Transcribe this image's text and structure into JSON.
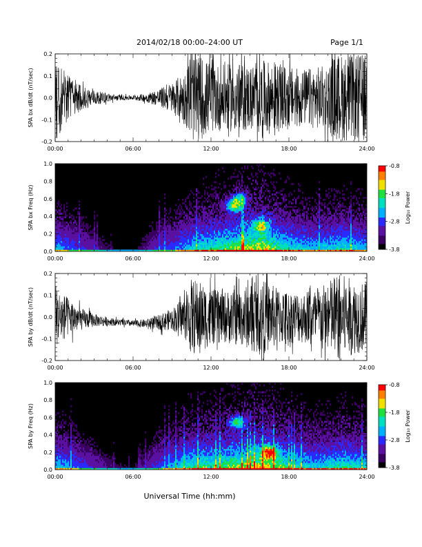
{
  "page": {
    "title": "2014/02/18  00:00–24:00 UT",
    "page_label": "Page 1/1",
    "xlabel": "Universal Time (hh:mm)"
  },
  "colors": {
    "trace": "#000000",
    "spectrogram_background": "#000000",
    "colormap": [
      "#000000",
      "#3a0060",
      "#5a10a0",
      "#2a2aff",
      "#00b0ff",
      "#00e0c0",
      "#20e040",
      "#f0e000",
      "#ff8000",
      "#ff0000"
    ]
  },
  "chart_data": [
    {
      "type": "line",
      "panel": "bx_dbdt",
      "ylabel": "SPA bx dB/dt (nT/sec)",
      "xlim": [
        0,
        24
      ],
      "ylim": [
        -0.2,
        0.2
      ],
      "xticks": [
        "00:00",
        "06:00",
        "12:00",
        "18:00",
        "24:00"
      ],
      "yticks": [
        "-0.2",
        "-0.1",
        "0.0",
        "0.1",
        "0.2"
      ],
      "series": [
        {
          "x": [
            0,
            1,
            2,
            3,
            4,
            5,
            6,
            7,
            8,
            9,
            10,
            10.5,
            11,
            12,
            13,
            14,
            15,
            16,
            17,
            18,
            19,
            20,
            21,
            21.5,
            22,
            23,
            24
          ],
          "amplitude": [
            0.2,
            0.1,
            0.06,
            0.035,
            0.02,
            0.012,
            0.01,
            0.02,
            0.04,
            0.07,
            0.12,
            0.2,
            0.2,
            0.16,
            0.15,
            0.16,
            0.15,
            0.17,
            0.16,
            0.14,
            0.13,
            0.14,
            0.15,
            0.2,
            0.2,
            0.2,
            0.2
          ]
        }
      ]
    },
    {
      "type": "heatmap",
      "panel": "bx_freq",
      "ylabel": "SPA bx Freq (Hz)",
      "colorbar_label": "Log₁₀ Power",
      "xlim": [
        0,
        24
      ],
      "ylim": [
        0.0,
        1.0
      ],
      "xticks": [
        "00:00",
        "06:00",
        "12:00",
        "18:00",
        "24:00"
      ],
      "yticks": [
        "0.0",
        "0.2",
        "0.4",
        "0.6",
        "0.8",
        "1.0"
      ],
      "colorbar_ticks": [
        "-0.8",
        "-1.8",
        "-2.8",
        "-3.8"
      ],
      "colorbar_range": [
        -3.8,
        -0.8
      ],
      "hours": [
        0,
        1,
        2,
        3,
        4,
        5,
        6,
        7,
        8,
        9,
        10,
        11,
        12,
        13,
        14,
        15,
        16,
        17,
        18,
        19,
        20,
        21,
        22,
        23,
        24
      ],
      "activity": [
        0.55,
        0.45,
        0.35,
        0.25,
        0.15,
        0.12,
        0.1,
        0.2,
        0.35,
        0.4,
        0.55,
        0.65,
        0.7,
        0.75,
        0.85,
        0.9,
        0.95,
        0.8,
        0.65,
        0.6,
        0.55,
        0.6,
        0.65,
        0.6,
        0.55
      ],
      "highlights": [
        {
          "t": 13.8,
          "f": 0.52,
          "level": 0.55
        },
        {
          "t": 14.2,
          "f": 0.6,
          "level": 0.45
        },
        {
          "t": 15.8,
          "f": 0.3,
          "level": 0.5
        }
      ]
    },
    {
      "type": "line",
      "panel": "by_dbdt",
      "ylabel": "SPA by dB/dt (nT/sec)",
      "xlim": [
        0,
        24
      ],
      "ylim": [
        -0.2,
        0.2
      ],
      "xticks": [
        "00:00",
        "06:00",
        "12:00",
        "18:00",
        "24:00"
      ],
      "yticks": [
        "-0.2",
        "-0.1",
        "0.0",
        "0.1",
        "0.2"
      ],
      "series": [
        {
          "x": [
            0,
            1,
            2,
            3,
            4,
            5,
            6,
            7,
            8,
            9,
            10,
            10.5,
            11,
            12,
            13,
            14,
            15,
            16,
            17,
            18,
            19,
            20,
            21,
            21.5,
            22,
            23,
            24
          ],
          "amplitude": [
            0.14,
            0.09,
            0.05,
            0.03,
            0.02,
            0.015,
            0.015,
            0.02,
            0.035,
            0.05,
            0.1,
            0.18,
            0.17,
            0.13,
            0.12,
            0.13,
            0.15,
            0.17,
            0.14,
            0.12,
            0.12,
            0.13,
            0.16,
            0.2,
            0.2,
            0.17,
            0.16
          ],
          "offset": [
            0,
            0,
            -0.01,
            -0.015,
            -0.02,
            -0.025,
            -0.03,
            -0.03,
            -0.025,
            -0.01,
            0,
            0,
            0,
            0,
            0,
            0,
            0,
            0,
            0,
            0,
            0,
            0,
            0,
            0,
            0,
            0,
            0
          ]
        }
      ]
    },
    {
      "type": "heatmap",
      "panel": "by_freq",
      "ylabel": "SPA by Freq (Hz)",
      "colorbar_label": "Log₁₀ Power",
      "xlim": [
        0,
        24
      ],
      "ylim": [
        0.0,
        1.0
      ],
      "xticks": [
        "00:00",
        "06:00",
        "12:00",
        "18:00",
        "24:00"
      ],
      "yticks": [
        "0.0",
        "0.2",
        "0.4",
        "0.6",
        "0.8",
        "1.0"
      ],
      "colorbar_ticks": [
        "-0.8",
        "-1.8",
        "-2.8",
        "-3.8"
      ],
      "colorbar_range": [
        -3.8,
        -0.8
      ],
      "hours": [
        0,
        1,
        2,
        3,
        4,
        5,
        6,
        7,
        8,
        9,
        10,
        11,
        12,
        13,
        14,
        15,
        16,
        17,
        18,
        19,
        20,
        21,
        22,
        23,
        24
      ],
      "activity": [
        0.6,
        0.5,
        0.4,
        0.3,
        0.2,
        0.15,
        0.12,
        0.25,
        0.4,
        0.5,
        0.65,
        0.75,
        0.75,
        0.8,
        0.85,
        0.9,
        0.95,
        0.85,
        0.7,
        0.65,
        0.6,
        0.65,
        0.7,
        0.65,
        0.6
      ],
      "highlights": [
        {
          "t": 14.0,
          "f": 0.55,
          "level": 0.5
        },
        {
          "t": 16.5,
          "f": 0.2,
          "level": 0.6
        }
      ]
    }
  ]
}
